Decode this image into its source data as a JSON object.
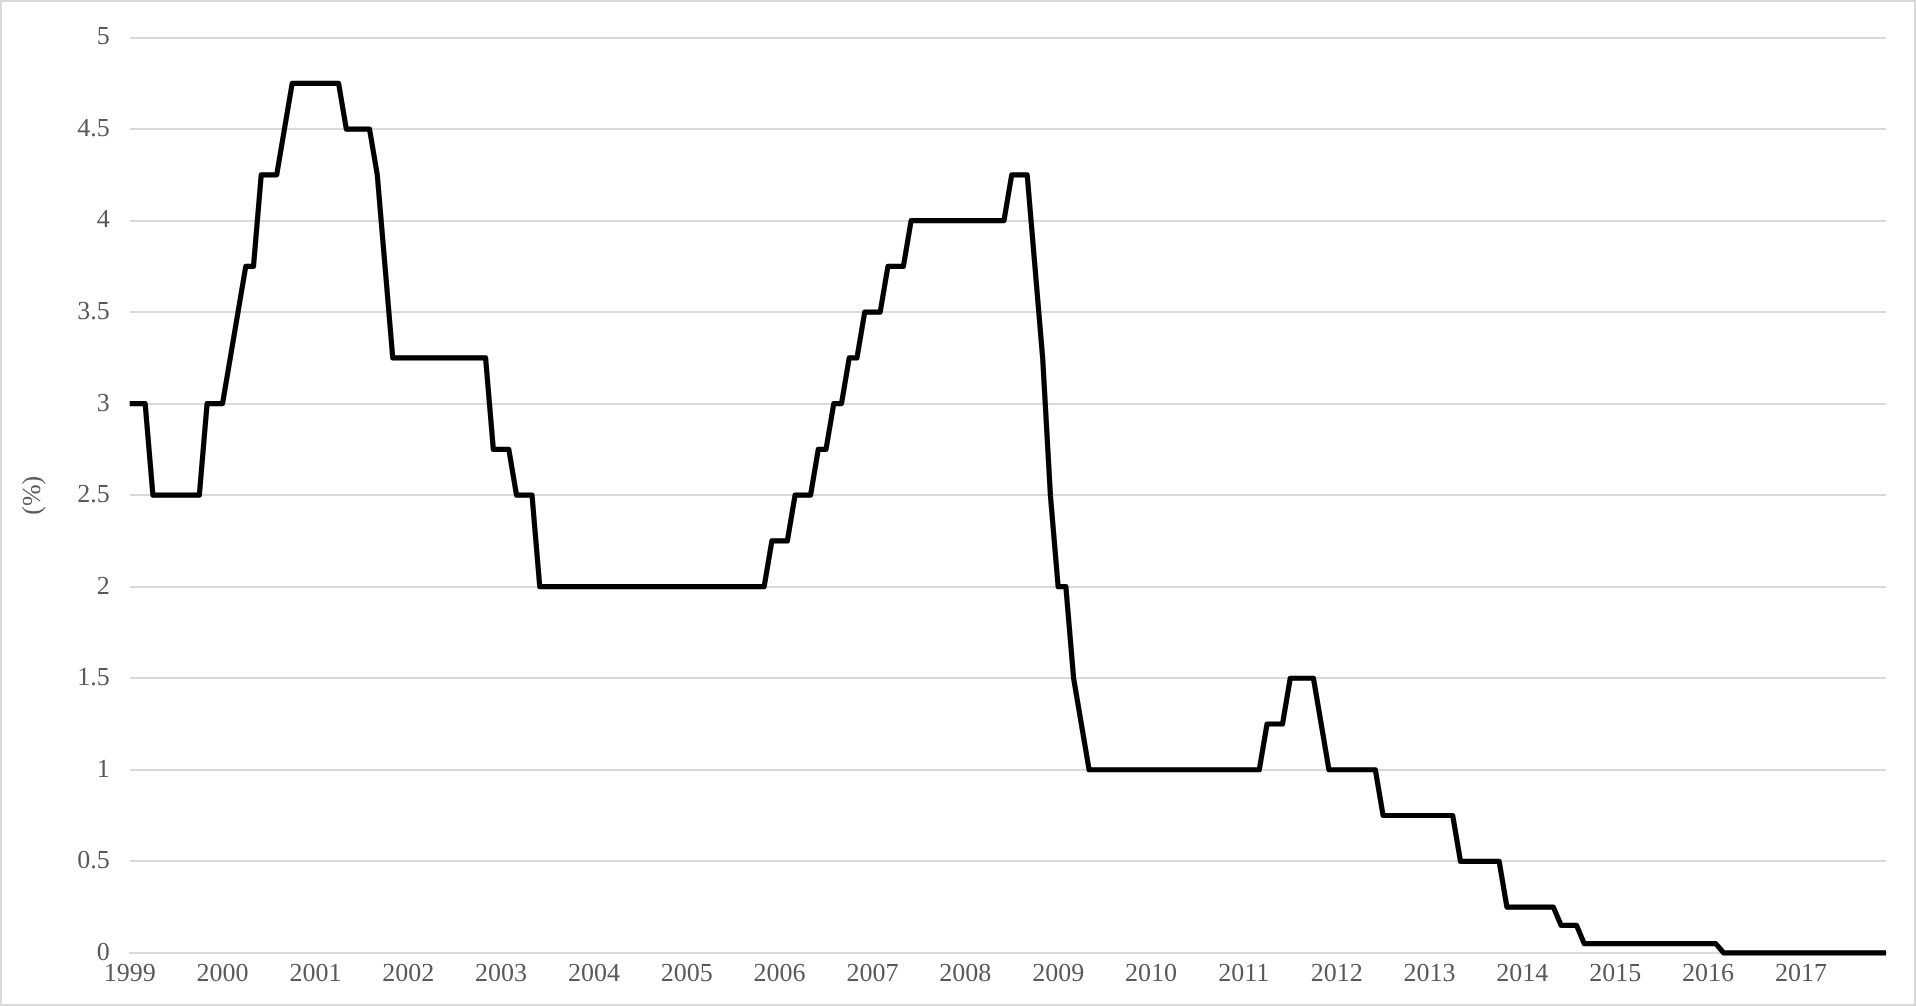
{
  "chart_data": {
    "type": "line",
    "ylabel": "(%)",
    "x": [
      "1999-01",
      "1999-03",
      "1999-04",
      "1999-10",
      "1999-11",
      "2000-01",
      "2000-02",
      "2000-03",
      "2000-04",
      "2000-05",
      "2000-06",
      "2000-08",
      "2000-09",
      "2000-10",
      "2001-04",
      "2001-05",
      "2001-08",
      "2001-09",
      "2001-10",
      "2001-11",
      "2002-11",
      "2002-12",
      "2003-02",
      "2003-03",
      "2003-05",
      "2003-06",
      "2005-11",
      "2005-12",
      "2006-02",
      "2006-03",
      "2006-05",
      "2006-06",
      "2006-07",
      "2006-08",
      "2006-09",
      "2006-10",
      "2006-11",
      "2006-12",
      "2007-02",
      "2007-03",
      "2007-05",
      "2007-06",
      "2008-06",
      "2008-07",
      "2008-09",
      "2008-10",
      "2008-11",
      "2008-12",
      "2009-01",
      "2009-02",
      "2009-03",
      "2009-04",
      "2009-05",
      "2011-03",
      "2011-04",
      "2011-06",
      "2011-07",
      "2011-10",
      "2011-11",
      "2011-12",
      "2012-06",
      "2012-07",
      "2013-04",
      "2013-05",
      "2013-10",
      "2013-11",
      "2014-05",
      "2014-06",
      "2014-08",
      "2014-09",
      "2016-02",
      "2016-03",
      "2017-12"
    ],
    "series": [
      {
        "color": "#000000",
        "values": [
          3,
          3,
          2.5,
          2.5,
          3,
          3,
          3.25,
          3.5,
          3.75,
          3.75,
          4.25,
          4.25,
          4.5,
          4.75,
          4.75,
          4.5,
          4.5,
          4.25,
          3.75,
          3.25,
          3.25,
          2.75,
          2.75,
          2.5,
          2.5,
          2,
          2,
          2.25,
          2.25,
          2.5,
          2.5,
          2.75,
          2.75,
          3,
          3,
          3.25,
          3.25,
          3.5,
          3.5,
          3.75,
          3.75,
          4,
          4,
          4.25,
          4.25,
          3.75,
          3.25,
          2.5,
          2,
          2,
          1.5,
          1.25,
          1,
          1,
          1.25,
          1.25,
          1.5,
          1.5,
          1.25,
          1,
          1,
          0.75,
          0.75,
          0.5,
          0.5,
          0.25,
          0.25,
          0.15,
          0.15,
          0.05,
          0.05,
          0,
          0
        ]
      }
    ],
    "xlim": [
      "1999-01",
      "2017-12"
    ],
    "xticks": [
      "1999",
      "2000",
      "2001",
      "2002",
      "2003",
      "2004",
      "2005",
      "2006",
      "2007",
      "2008",
      "2009",
      "2010",
      "2011",
      "2012",
      "2013",
      "2014",
      "2015",
      "2016",
      "2017"
    ],
    "ylim": [
      0,
      5
    ],
    "yticks": [
      0,
      0.5,
      1,
      1.5,
      2,
      2.5,
      3,
      3.5,
      4,
      4.5,
      5
    ],
    "grid": "y",
    "legend": false,
    "marker": "none",
    "line_style": "solid"
  }
}
